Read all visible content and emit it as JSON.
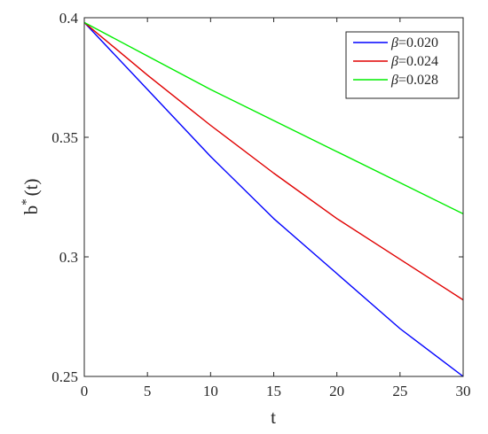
{
  "chart_data": {
    "type": "line",
    "xlabel": "t",
    "ylabel": "b",
    "ylabel_superscript": "*",
    "ylabel_suffix": "(t)",
    "xlim": [
      0,
      30
    ],
    "ylim": [
      0.25,
      0.4
    ],
    "xticks": [
      0,
      5,
      10,
      15,
      20,
      25,
      30
    ],
    "yticks": [
      0.25,
      0.3,
      0.35,
      0.4
    ],
    "ytick_labels": [
      "0.25",
      "0.3",
      "0.35",
      "0.4"
    ],
    "grid": false,
    "legend_position": "top-right",
    "x": [
      0,
      5,
      10,
      15,
      20,
      25,
      30
    ],
    "series": [
      {
        "symbol": "β",
        "value_text": "=0.020",
        "color": "#0000ff",
        "values": [
          0.398,
          0.37,
          0.342,
          0.316,
          0.293,
          0.27,
          0.25
        ]
      },
      {
        "symbol": "β",
        "value_text": "=0.024",
        "color": "#e00000",
        "values": [
          0.398,
          0.376,
          0.355,
          0.335,
          0.316,
          0.299,
          0.282
        ]
      },
      {
        "symbol": "β",
        "value_text": "=0.028",
        "color": "#00ee00",
        "values": [
          0.398,
          0.384,
          0.37,
          0.357,
          0.344,
          0.331,
          0.318
        ]
      }
    ]
  }
}
